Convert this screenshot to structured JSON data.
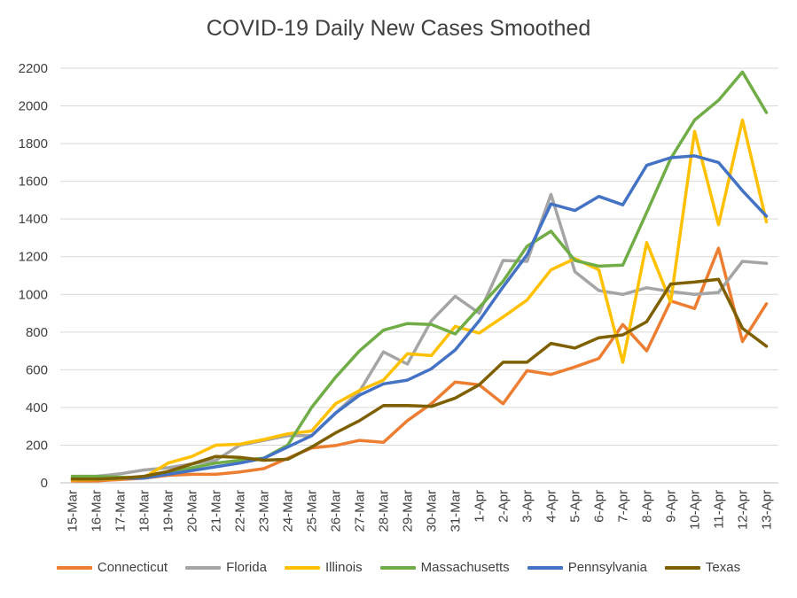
{
  "chart_data": {
    "type": "line",
    "title": "COVID-19 Daily New Cases Smoothed",
    "xlabel": "",
    "ylabel": "",
    "ylim": [
      0,
      2200
    ],
    "yticks": [
      0,
      200,
      400,
      600,
      800,
      1000,
      1200,
      1400,
      1600,
      1800,
      2000,
      2200
    ],
    "grid": true,
    "legend_position": "bottom",
    "categories": [
      "15-Mar",
      "16-Mar",
      "17-Mar",
      "18-Mar",
      "19-Mar",
      "20-Mar",
      "21-Mar",
      "22-Mar",
      "23-Mar",
      "24-Mar",
      "25-Mar",
      "26-Mar",
      "27-Mar",
      "28-Mar",
      "29-Mar",
      "30-Mar",
      "31-Mar",
      "1-Apr",
      "2-Apr",
      "3-Apr",
      "4-Apr",
      "5-Apr",
      "6-Apr",
      "7-Apr",
      "8-Apr",
      "9-Apr",
      "10-Apr",
      "11-Apr",
      "12-Apr",
      "13-Apr"
    ],
    "series": [
      {
        "name": "Connecticut",
        "color": "#ED7D31",
        "values": [
          10,
          10,
          18,
          25,
          40,
          45,
          45,
          58,
          75,
          130,
          185,
          198,
          225,
          215,
          330,
          420,
          535,
          520,
          420,
          595,
          575,
          615,
          660,
          840,
          700,
          965,
          925,
          1245,
          750,
          950
        ]
      },
      {
        "name": "Florida",
        "color": "#A5A5A5",
        "values": [
          30,
          35,
          48,
          68,
          80,
          100,
          120,
          200,
          225,
          250,
          250,
          370,
          485,
          695,
          630,
          860,
          990,
          900,
          1180,
          1175,
          1530,
          1120,
          1020,
          1000,
          1035,
          1015,
          1000,
          1010,
          1175,
          1165
        ]
      },
      {
        "name": "Illinois",
        "color": "#FFC000",
        "values": [
          15,
          18,
          22,
          28,
          105,
          140,
          200,
          205,
          230,
          260,
          275,
          420,
          490,
          545,
          685,
          675,
          830,
          795,
          880,
          970,
          1130,
          1190,
          1130,
          640,
          1275,
          960,
          1865,
          1370,
          1925,
          1385
        ]
      },
      {
        "name": "Massachusetts",
        "color": "#70AD47",
        "values": [
          35,
          35,
          30,
          25,
          55,
          80,
          105,
          120,
          130,
          200,
          400,
          560,
          700,
          810,
          845,
          840,
          790,
          930,
          1070,
          1255,
          1335,
          1180,
          1150,
          1155,
          1435,
          1720,
          1925,
          2030,
          2180,
          1965
        ]
      },
      {
        "name": "Pennsylvania",
        "color": "#4472C4",
        "values": [
          20,
          20,
          25,
          25,
          45,
          65,
          85,
          105,
          130,
          190,
          250,
          370,
          465,
          525,
          545,
          605,
          705,
          860,
          1040,
          1210,
          1480,
          1445,
          1520,
          1475,
          1685,
          1725,
          1735,
          1700,
          1550,
          1415
        ]
      },
      {
        "name": "Texas",
        "color": "#7F6000",
        "values": [
          20,
          20,
          25,
          35,
          60,
          100,
          140,
          135,
          120,
          125,
          190,
          265,
          330,
          410,
          410,
          405,
          450,
          520,
          640,
          640,
          740,
          715,
          770,
          785,
          855,
          1055,
          1065,
          1080,
          820,
          725
        ]
      }
    ]
  }
}
